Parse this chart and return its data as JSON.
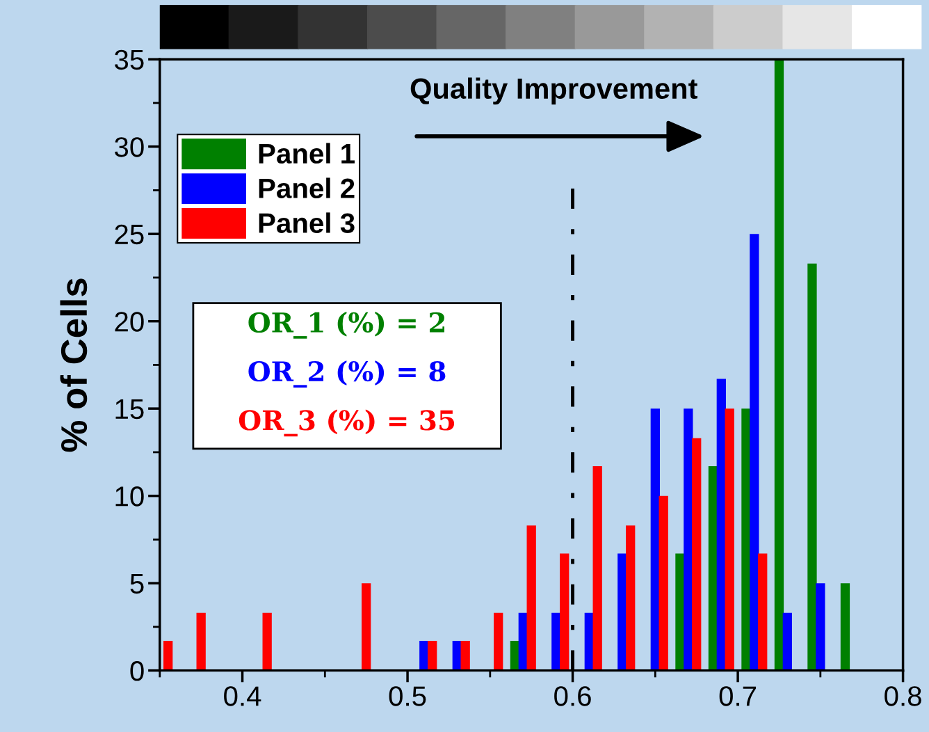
{
  "chart_data": {
    "type": "bar",
    "ylabel": "% of Cells",
    "series": [
      {
        "name": "Panel 1",
        "color": "#008000",
        "x": [
          0.565,
          0.665,
          0.685,
          0.705,
          0.725,
          0.745,
          0.765
        ],
        "values": [
          1.7,
          6.7,
          11.7,
          15,
          35,
          23.3,
          5
        ]
      },
      {
        "name": "Panel 2",
        "color": "#0000ff",
        "x": [
          0.51,
          0.53,
          0.57,
          0.59,
          0.61,
          0.63,
          0.65,
          0.67,
          0.69,
          0.71,
          0.73,
          0.75
        ],
        "values": [
          1.7,
          1.7,
          3.3,
          3.3,
          3.3,
          6.7,
          15,
          15,
          16.7,
          25,
          3.3,
          5
        ]
      },
      {
        "name": "Panel 3",
        "color": "#ff0000",
        "x": [
          0.355,
          0.375,
          0.415,
          0.475,
          0.515,
          0.535,
          0.555,
          0.575,
          0.595,
          0.615,
          0.635,
          0.655,
          0.675,
          0.695,
          0.715
        ],
        "values": [
          1.7,
          3.3,
          3.3,
          5,
          1.7,
          1.7,
          3.3,
          8.3,
          6.7,
          11.7,
          8.3,
          10,
          13.3,
          15,
          6.7
        ]
      }
    ],
    "xlim": [
      0.35,
      0.8
    ],
    "xticks": [
      0.4,
      0.5,
      0.6,
      0.7,
      0.8
    ],
    "ylim": [
      0,
      35
    ],
    "yticks": [
      0,
      5,
      10,
      15,
      20,
      25,
      30,
      35
    ],
    "ref_lines": [
      {
        "axis": "x",
        "value": 0.6,
        "color": "#000000",
        "line_style": "dashdot"
      }
    ],
    "annotations": [
      "Quality Improvement",
      "OR_1 (%) = 2",
      "OR_2 (%) = 8",
      "OR_3 (%) = 35"
    ],
    "legend": "top left",
    "grid": false
  }
}
